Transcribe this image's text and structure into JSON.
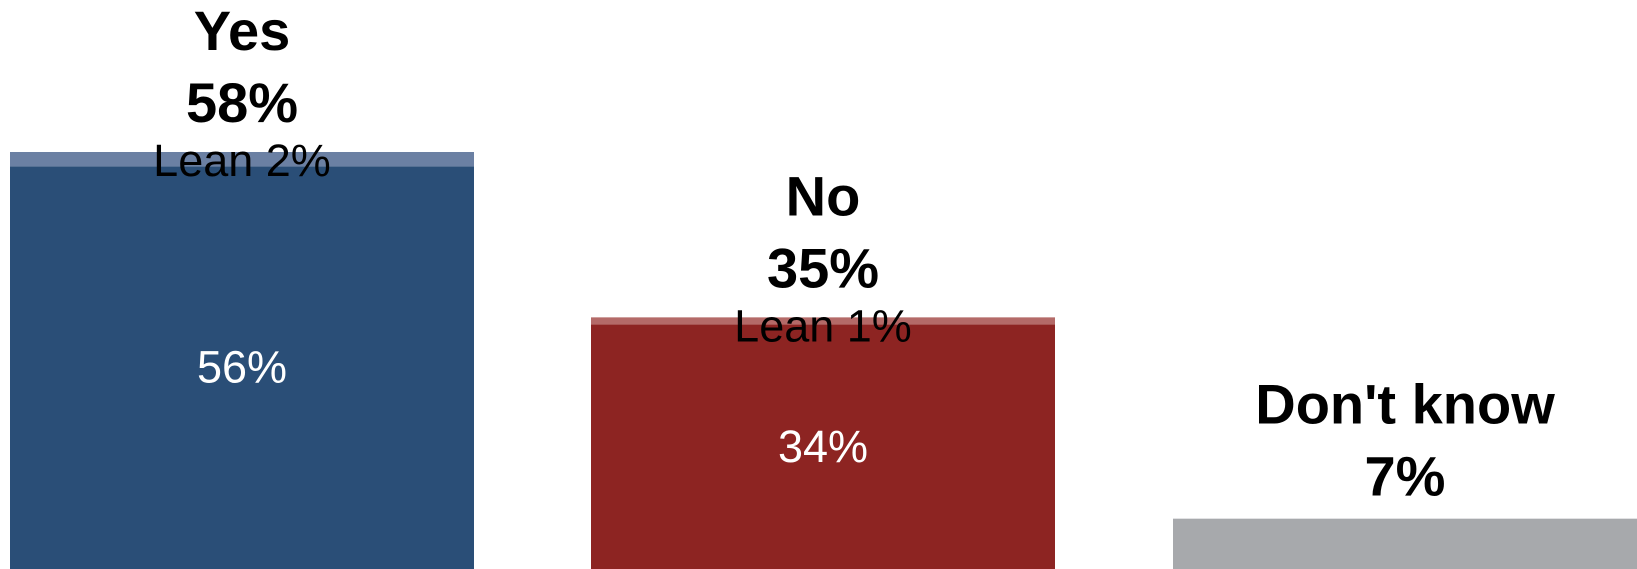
{
  "chart_data": {
    "type": "bar",
    "stacked": true,
    "categories": [
      "Yes",
      "No",
      "Don't know"
    ],
    "totals": [
      58,
      35,
      7
    ],
    "total_labels": [
      "58%",
      "35%",
      "7%"
    ],
    "series": [
      {
        "name": "",
        "values": [
          56,
          34,
          7
        ],
        "value_labels": [
          "56%",
          "34%",
          ""
        ]
      },
      {
        "name": "Lean",
        "values": [
          2,
          1,
          0
        ],
        "value_labels": [
          "Lean 2%",
          "Lean 1%",
          ""
        ]
      }
    ],
    "colors": {
      "base": [
        "#2a4e77",
        "#8d2422",
        "#a7a9ac"
      ],
      "lean": [
        "#6b80a3",
        "#b46a68",
        "#a7a9ac"
      ]
    },
    "ylim": [
      0,
      58
    ],
    "title": "",
    "xlabel": "",
    "ylabel": ""
  }
}
